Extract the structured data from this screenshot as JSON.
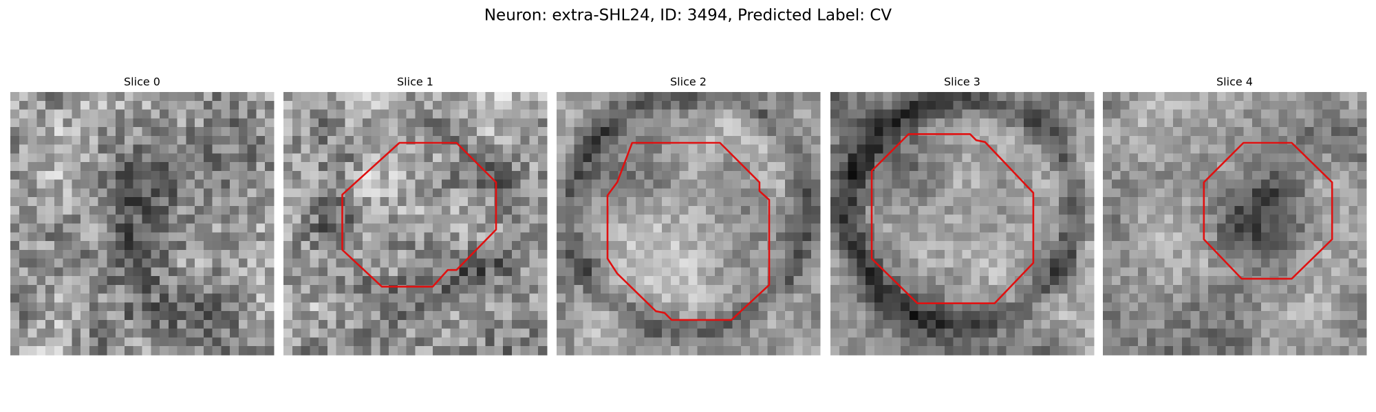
{
  "figure": {
    "title": "Neuron: extra-SHL24, ID: 3494, Predicted Label: CV",
    "panels": [
      {
        "title": "Slice 0"
      },
      {
        "title": "Slice 1"
      },
      {
        "title": "Slice 2"
      },
      {
        "title": "Slice 3"
      },
      {
        "title": "Slice 4"
      }
    ]
  }
}
